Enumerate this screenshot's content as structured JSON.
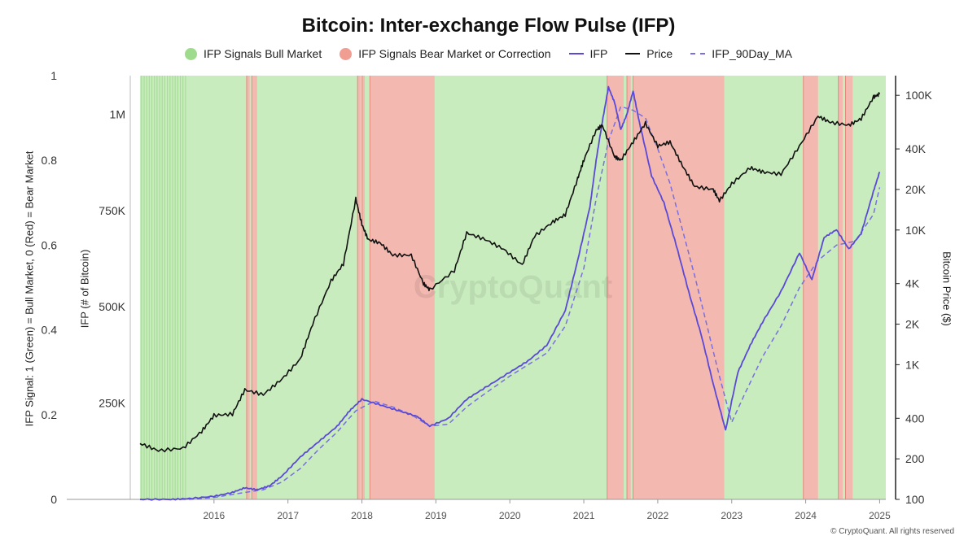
{
  "title": "Bitcoin: Inter-exchange Flow Pulse (IFP)",
  "legend": {
    "bull": "IFP Signals Bull Market",
    "bear": "IFP Signals Bear Market or Correction",
    "ifp": "IFP",
    "price": "Price",
    "ma": "IFP_90Day_MA"
  },
  "colors": {
    "bull_fill": "#c9ecbf",
    "bull_dot": "#9edb8c",
    "bear_fill": "#f3b8b0",
    "bear_dot": "#f09d92",
    "ifp": "#5a49d6",
    "price": "#111111",
    "ma": "#7a6fe0"
  },
  "axes": {
    "left_outer_title": "IFP Signal: 1 (Green) = Bull Market, 0 (Red) = Bear Market",
    "left_inner_title": "IFP (# of Bitcoin)",
    "right_title": "Bitcoin Price ($)"
  },
  "watermark": "CryptoQuant",
  "footer": "© CryptoQuant. All rights reserved",
  "chart_data": {
    "type": "line",
    "x_range": [
      "2015-01-01",
      "2025-02-01"
    ],
    "x_ticks": [
      "2016",
      "2017",
      "2018",
      "2019",
      "2020",
      "2021",
      "2022",
      "2023",
      "2024",
      "2025"
    ],
    "signal_axis": {
      "ticks": [
        "0",
        "0.2",
        "0.4",
        "0.6",
        "0.8",
        "1"
      ],
      "ylim": [
        0,
        1
      ]
    },
    "ifp_axis": {
      "ticks": [
        "250K",
        "500K",
        "750K",
        "1M"
      ],
      "ylim": [
        0,
        1100000
      ]
    },
    "price_axis": {
      "scale": "log",
      "ticks": [
        "100",
        "200",
        "400",
        "1K",
        "2K",
        "4K",
        "10K",
        "20K",
        "40K",
        "100K"
      ],
      "ylim": [
        100,
        140000
      ]
    },
    "bear_periods": [
      [
        "2016-06-10",
        "2016-06-25"
      ],
      [
        "2016-07-05",
        "2016-08-01"
      ],
      [
        "2017-12-10",
        "2017-12-25"
      ],
      [
        "2018-01-02",
        "2018-01-15"
      ],
      [
        "2018-02-10",
        "2018-12-25"
      ],
      [
        "2021-04-25",
        "2021-07-15"
      ],
      [
        "2021-08-01",
        "2021-08-20"
      ],
      [
        "2021-09-01",
        "2022-11-25"
      ],
      [
        "2023-12-20",
        "2024-03-01"
      ],
      [
        "2024-06-10",
        "2024-07-01"
      ],
      [
        "2024-07-15",
        "2024-08-20"
      ]
    ],
    "series": [
      {
        "name": "IFP",
        "axis": "ifp",
        "x": [
          "2015-01",
          "2015-06",
          "2015-09",
          "2016-01",
          "2016-04",
          "2016-06",
          "2016-08",
          "2016-10",
          "2016-12",
          "2017-03",
          "2017-06",
          "2017-09",
          "2017-11",
          "2018-01",
          "2018-04",
          "2018-07",
          "2018-10",
          "2018-12",
          "2019-03",
          "2019-06",
          "2019-09",
          "2020-01",
          "2020-04",
          "2020-07",
          "2020-10",
          "2020-12",
          "2021-02",
          "2021-03",
          "2021-04",
          "2021-05",
          "2021-06",
          "2021-07",
          "2021-08",
          "2021-09",
          "2021-10",
          "2021-12",
          "2022-02",
          "2022-04",
          "2022-06",
          "2022-08",
          "2022-10",
          "2022-12",
          "2023-02",
          "2023-04",
          "2023-06",
          "2023-09",
          "2023-12",
          "2024-02",
          "2024-04",
          "2024-06",
          "2024-08",
          "2024-10",
          "2024-12",
          "2025-01"
        ],
        "values": [
          0,
          0,
          2000,
          8000,
          18000,
          30000,
          25000,
          35000,
          60000,
          110000,
          150000,
          190000,
          230000,
          260000,
          245000,
          230000,
          215000,
          190000,
          210000,
          260000,
          290000,
          330000,
          360000,
          400000,
          490000,
          620000,
          760000,
          880000,
          980000,
          1070000,
          1030000,
          960000,
          1000000,
          1060000,
          980000,
          840000,
          770000,
          660000,
          540000,
          430000,
          300000,
          180000,
          330000,
          400000,
          460000,
          540000,
          640000,
          570000,
          680000,
          700000,
          650000,
          690000,
          800000,
          850000
        ]
      },
      {
        "name": "IFP_90Day_MA",
        "axis": "ifp",
        "x": [
          "2015-01",
          "2015-09",
          "2016-01",
          "2016-06",
          "2016-09",
          "2016-12",
          "2017-03",
          "2017-06",
          "2017-09",
          "2017-12",
          "2018-03",
          "2018-06",
          "2018-09",
          "2018-12",
          "2019-03",
          "2019-06",
          "2019-09",
          "2020-01",
          "2020-04",
          "2020-07",
          "2020-10",
          "2021-01",
          "2021-03",
          "2021-05",
          "2021-07",
          "2021-09",
          "2021-11",
          "2022-01",
          "2022-03",
          "2022-05",
          "2022-07",
          "2022-09",
          "2022-11",
          "2023-01",
          "2023-03",
          "2023-06",
          "2023-09",
          "2023-12",
          "2024-03",
          "2024-06",
          "2024-09",
          "2024-12",
          "2025-01"
        ],
        "values": [
          0,
          0,
          5000,
          18000,
          25000,
          45000,
          80000,
          130000,
          175000,
          230000,
          255000,
          240000,
          220000,
          190000,
          195000,
          240000,
          275000,
          320000,
          350000,
          380000,
          450000,
          600000,
          780000,
          930000,
          1020000,
          1010000,
          990000,
          910000,
          820000,
          700000,
          580000,
          450000,
          320000,
          200000,
          270000,
          370000,
          450000,
          550000,
          620000,
          660000,
          670000,
          740000,
          810000
        ]
      },
      {
        "name": "Price",
        "axis": "price",
        "x": [
          "2015-01",
          "2015-04",
          "2015-08",
          "2015-11",
          "2016-01",
          "2016-04",
          "2016-06",
          "2016-09",
          "2016-12",
          "2017-03",
          "2017-05",
          "2017-08",
          "2017-10",
          "2017-12",
          "2018-01",
          "2018-02",
          "2018-04",
          "2018-06",
          "2018-09",
          "2018-11",
          "2018-12",
          "2019-04",
          "2019-06",
          "2019-09",
          "2019-12",
          "2020-03",
          "2020-05",
          "2020-08",
          "2020-10",
          "2020-12",
          "2021-01",
          "2021-03",
          "2021-04",
          "2021-06",
          "2021-07",
          "2021-09",
          "2021-11",
          "2022-01",
          "2022-03",
          "2022-05",
          "2022-07",
          "2022-10",
          "2022-11",
          "2023-01",
          "2023-04",
          "2023-06",
          "2023-09",
          "2023-12",
          "2024-03",
          "2024-05",
          "2024-08",
          "2024-10",
          "2024-12",
          "2025-01"
        ],
        "values": [
          260,
          230,
          240,
          320,
          420,
          430,
          650,
          600,
          780,
          1100,
          2000,
          4200,
          5600,
          17000,
          11000,
          8500,
          8000,
          6500,
          6500,
          4000,
          3600,
          5000,
          9500,
          8500,
          7200,
          5500,
          9000,
          11500,
          13000,
          24000,
          33000,
          55000,
          60000,
          35000,
          33000,
          45000,
          62000,
          42000,
          45000,
          30000,
          21000,
          20000,
          16500,
          22000,
          29000,
          27000,
          26000,
          42000,
          70000,
          63000,
          60000,
          67000,
          97000,
          102000
        ]
      }
    ]
  }
}
